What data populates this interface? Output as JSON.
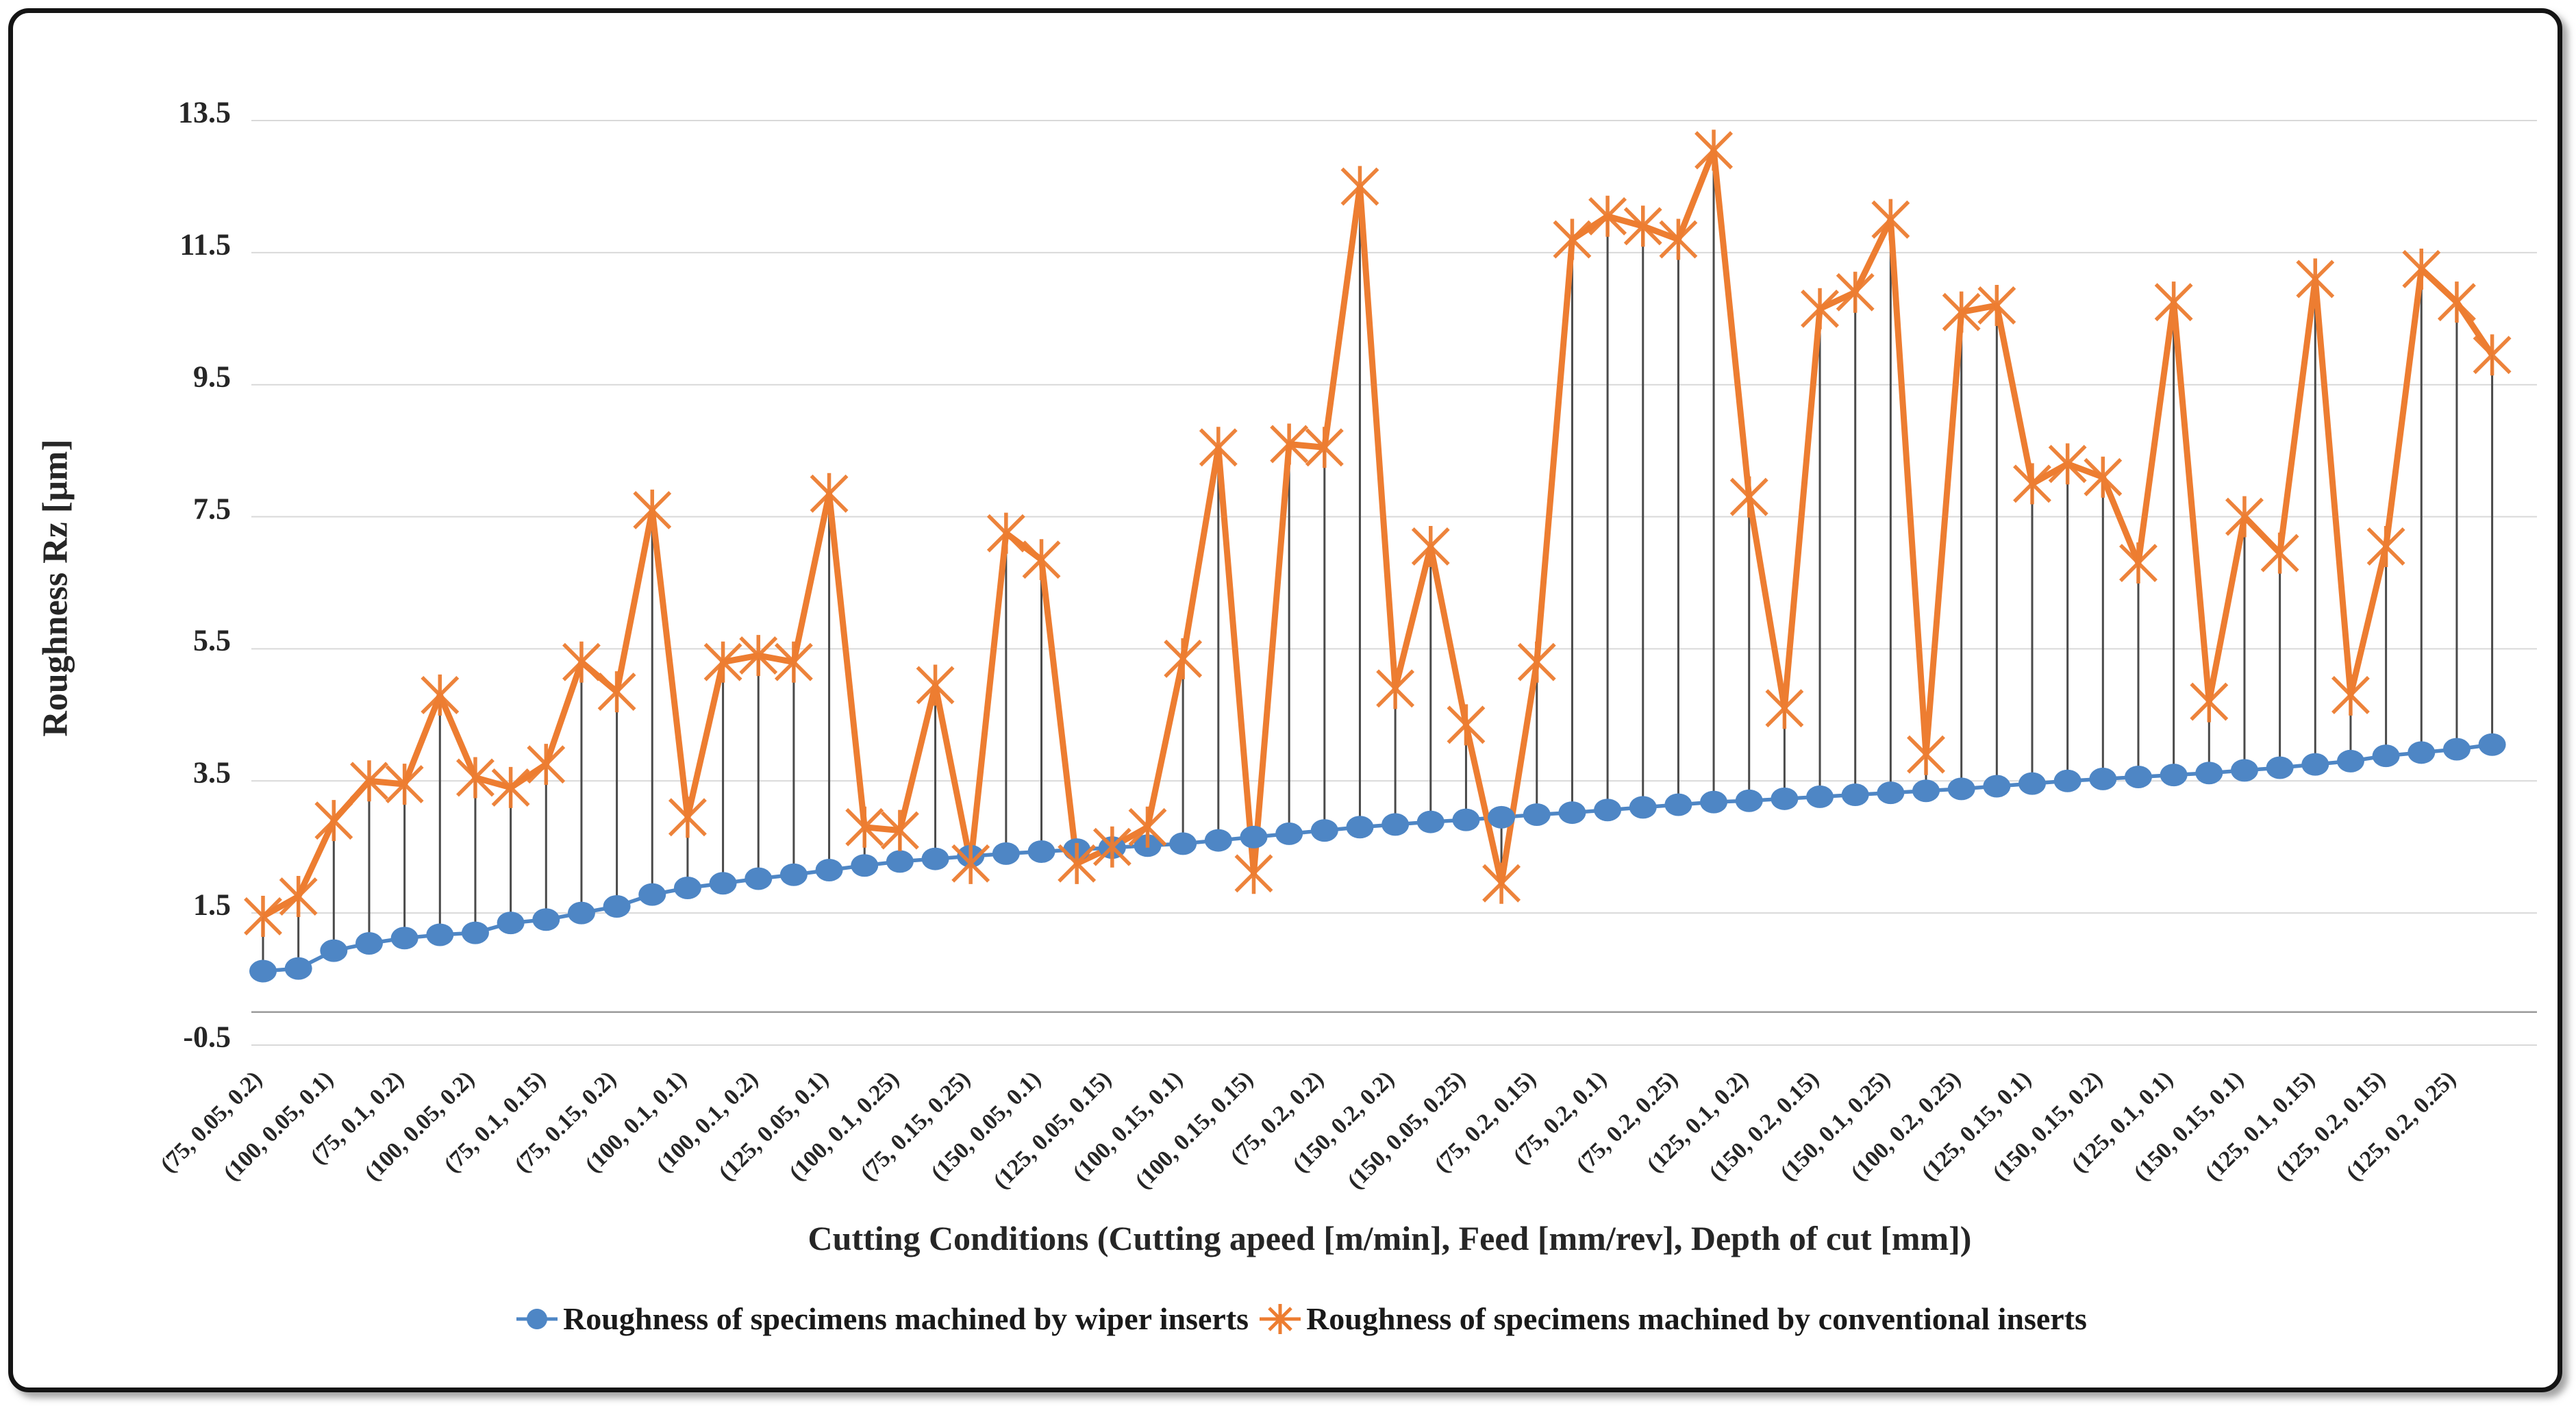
{
  "y_axis": {
    "title": "Roughness Rz [µm]",
    "ticks": [
      "13.5",
      "11.5",
      "9.5",
      "7.5",
      "5.5",
      "3.5",
      "1.5",
      "-0.5"
    ],
    "min": -0.5,
    "max": 13.5,
    "step": 2
  },
  "x_axis": {
    "title": "Cutting Conditions (Cutting apeed [m/min], Feed [mm/rev], Depth of cut [mm])",
    "label_interval": 2
  },
  "legend": {
    "wiper_label": "Roughness of specimens machined by wiper inserts",
    "conventional_label": "Roughness of specimens machined by conventional inserts"
  },
  "colors": {
    "wiper": "#4E86C5",
    "conventional": "#ED7D31",
    "gridline": "#D9D9D9",
    "axis_line": "#9B9B9B",
    "drop_line": "#4A4A4A",
    "text": "#262626"
  },
  "chart_data": {
    "type": "line",
    "title": "",
    "xlabel": "Cutting Conditions (Cutting apeed [m/min], Feed [mm/rev], Depth of cut [mm])",
    "ylabel": "Roughness Rz [µm]",
    "ylim": [
      -0.5,
      13.5
    ],
    "grid": true,
    "legend_position": "bottom",
    "n_points": 64,
    "label_interval": 2,
    "categories": [
      "(75, 0.05, 0.2)",
      "(100, 0.05, 0.1)",
      "(75, 0.1, 0.2)",
      "(100, 0.05, 0.2)",
      "(75, 0.1, 0.15)",
      "(75, 0.15, 0.2)",
      "(100, 0.1, 0.1)",
      "(100, 0.1, 0.2)",
      "(125, 0.05, 0.1)",
      "(100, 0.1, 0.25)",
      "(75, 0.15, 0.25)",
      "(150, 0.05, 0.1)",
      "(125, 0.05, 0.15)",
      "(100, 0.15, 0.1)",
      "(100, 0.15, 0.15)",
      "(75, 0.2, 0.2)",
      "(150, 0.2, 0.2)",
      "(150, 0.05, 0.25)",
      "(75, 0.2, 0.15)",
      "(75, 0.2, 0.1)",
      "(75, 0.2, 0.25)",
      "(125, 0.1, 0.2)",
      "(150, 0.2, 0.15)",
      "(150, 0.1, 0.25)",
      "(100, 0.2, 0.25)",
      "(125, 0.15, 0.1)",
      "(150, 0.15, 0.2)",
      "(125, 0.1, 0.1)",
      "(150, 0.15, 0.1)",
      "(125, 0.1, 0.15)",
      "(125, 0.2, 0.15)",
      "(125, 0.2, 0.25)"
    ],
    "series": [
      {
        "name": "Roughness of specimens machined by wiper inserts",
        "values": [
          0.62,
          0.66,
          0.93,
          1.04,
          1.12,
          1.17,
          1.2,
          1.35,
          1.4,
          1.5,
          1.6,
          1.78,
          1.88,
          1.95,
          2.02,
          2.08,
          2.15,
          2.22,
          2.28,
          2.32,
          2.36,
          2.4,
          2.43,
          2.46,
          2.49,
          2.52,
          2.55,
          2.6,
          2.65,
          2.7,
          2.75,
          2.8,
          2.84,
          2.88,
          2.91,
          2.95,
          2.99,
          3.02,
          3.06,
          3.1,
          3.14,
          3.18,
          3.2,
          3.23,
          3.26,
          3.29,
          3.32,
          3.35,
          3.38,
          3.42,
          3.46,
          3.5,
          3.53,
          3.56,
          3.59,
          3.62,
          3.66,
          3.7,
          3.75,
          3.8,
          3.88,
          3.93,
          3.98,
          4.05
        ]
      },
      {
        "name": "Roughness of specimens machined by conventional inserts",
        "values": [
          1.45,
          1.75,
          2.9,
          3.5,
          3.45,
          4.8,
          3.55,
          3.4,
          3.75,
          5.3,
          4.85,
          7.6,
          2.95,
          5.3,
          5.4,
          5.3,
          7.85,
          2.8,
          2.75,
          4.95,
          2.25,
          7.25,
          6.85,
          2.25,
          2.5,
          2.8,
          5.35,
          8.55,
          2.1,
          8.6,
          8.55,
          12.5,
          4.9,
          7.05,
          4.35,
          1.95,
          5.3,
          11.7,
          12.05,
          11.9,
          11.7,
          13.05,
          7.8,
          4.6,
          10.65,
          10.9,
          12.0,
          3.9,
          10.6,
          10.7,
          8.0,
          8.3,
          8.1,
          6.8,
          10.75,
          4.7,
          7.5,
          6.95,
          11.1,
          4.8,
          7.05,
          11.25,
          10.75,
          9.95
        ]
      }
    ]
  }
}
